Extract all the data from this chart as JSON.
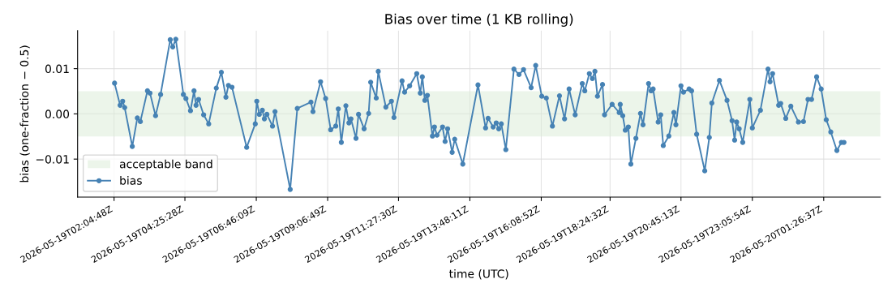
{
  "chart_data": {
    "type": "line",
    "title": "Bias over time (1 KB rolling)",
    "xlabel": "time (UTC)",
    "ylabel": "bias (one-fraction − 0.5)",
    "xlim": [
      "2026-05-19T00:53",
      "2026-05-20T03:19"
    ],
    "ylim": [
      -0.0184,
      0.0184
    ],
    "xticks": [
      {
        "value": "2026-05-19T02:05",
        "label": "2026-05-19T02:04:48Z"
      },
      {
        "value": "2026-05-19T04:25",
        "label": "2026-05-19T04:25:28Z"
      },
      {
        "value": "2026-05-19T06:46",
        "label": "2026-05-19T06:46:09Z"
      },
      {
        "value": "2026-05-19T09:07",
        "label": "2026-05-19T09:06:49Z"
      },
      {
        "value": "2026-05-19T11:27",
        "label": "2026-05-19T11:27:30Z"
      },
      {
        "value": "2026-05-19T13:48",
        "label": "2026-05-19T13:48:11Z"
      },
      {
        "value": "2026-05-19T16:09",
        "label": "2026-05-19T16:08:52Z"
      },
      {
        "value": "2026-05-19T18:25",
        "label": "2026-05-19T18:24:32Z"
      },
      {
        "value": "2026-05-19T20:45",
        "label": "2026-05-19T20:45:13Z"
      },
      {
        "value": "2026-05-19T23:06",
        "label": "2026-05-19T23:05:54Z"
      },
      {
        "value": "2026-05-20T01:27",
        "label": "2026-05-20T01:26:37Z"
      }
    ],
    "yticks": [
      {
        "value": -0.01,
        "label": "−0.01"
      },
      {
        "value": 0,
        "label": "0.00"
      },
      {
        "value": 0.01,
        "label": "0.01"
      }
    ],
    "grid": true,
    "legend": "bottom left",
    "marker": "circle",
    "line_style": "solid",
    "bands": [
      {
        "axis": "y",
        "from": -0.005,
        "to": 0.005,
        "label": "acceptable band",
        "color": "#d9ebd6"
      }
    ],
    "series": [
      {
        "name": "bias",
        "color": "#4682b4",
        "x": [
          "2026-05-19T02:06",
          "2026-05-19T02:17",
          "2026-05-19T02:22",
          "2026-05-19T02:26",
          "2026-05-19T02:41",
          "2026-05-19T02:51",
          "2026-05-19T02:57",
          "2026-05-19T03:11",
          "2026-05-19T03:16",
          "2026-05-19T03:27",
          "2026-05-19T03:37",
          "2026-05-19T03:56",
          "2026-05-19T04:01",
          "2026-05-19T04:07",
          "2026-05-19T04:22",
          "2026-05-19T04:27",
          "2026-05-19T04:36",
          "2026-05-19T04:43",
          "2026-05-19T04:47",
          "2026-05-19T04:52",
          "2026-05-19T05:02",
          "2026-05-19T05:12",
          "2026-05-19T05:27",
          "2026-05-19T05:37",
          "2026-05-19T05:46",
          "2026-05-19T05:51",
          "2026-05-19T05:58",
          "2026-05-19T06:27",
          "2026-05-19T06:44",
          "2026-05-19T06:47",
          "2026-05-19T06:52",
          "2026-05-19T06:58",
          "2026-05-19T07:02",
          "2026-05-19T07:07",
          "2026-05-19T07:18",
          "2026-05-19T07:23",
          "2026-05-19T07:53",
          "2026-05-19T08:07",
          "2026-05-19T08:34",
          "2026-05-19T08:38",
          "2026-05-19T08:53",
          "2026-05-19T09:03",
          "2026-05-19T09:13",
          "2026-05-19T09:23",
          "2026-05-19T09:28",
          "2026-05-19T09:34",
          "2026-05-19T09:43",
          "2026-05-19T09:49",
          "2026-05-19T09:53",
          "2026-05-19T10:03",
          "2026-05-19T10:08",
          "2026-05-19T10:19",
          "2026-05-19T10:28",
          "2026-05-19T10:32",
          "2026-05-19T10:43",
          "2026-05-19T10:47",
          "2026-05-19T11:02",
          "2026-05-19T11:13",
          "2026-05-19T11:18",
          "2026-05-19T11:34",
          "2026-05-19T11:39",
          "2026-05-19T11:49",
          "2026-05-19T12:03",
          "2026-05-19T12:10",
          "2026-05-19T12:14",
          "2026-05-19T12:19",
          "2026-05-19T12:24",
          "2026-05-19T12:34",
          "2026-05-19T12:38",
          "2026-05-19T12:43",
          "2026-05-19T12:54",
          "2026-05-19T12:59",
          "2026-05-19T13:04",
          "2026-05-19T13:13",
          "2026-05-19T13:18",
          "2026-05-19T13:34",
          "2026-05-19T14:04",
          "2026-05-19T14:19",
          "2026-05-19T14:24",
          "2026-05-19T14:34",
          "2026-05-19T14:40",
          "2026-05-19T14:45",
          "2026-05-19T14:50",
          "2026-05-19T14:59",
          "2026-05-19T15:15",
          "2026-05-19T15:25",
          "2026-05-19T15:34",
          "2026-05-19T15:49",
          "2026-05-19T15:58",
          "2026-05-19T16:10",
          "2026-05-19T16:19",
          "2026-05-19T16:31",
          "2026-05-19T16:45",
          "2026-05-19T16:55",
          "2026-05-19T17:04",
          "2026-05-19T17:16",
          "2026-05-19T17:30",
          "2026-05-19T17:35",
          "2026-05-19T17:44",
          "2026-05-19T17:50",
          "2026-05-19T17:55",
          "2026-05-19T18:00",
          "2026-05-19T18:10",
          "2026-05-19T18:14",
          "2026-05-19T18:29",
          "2026-05-19T18:43",
          "2026-05-19T18:45",
          "2026-05-19T18:50",
          "2026-05-19T18:55",
          "2026-05-19T19:01",
          "2026-05-19T19:06",
          "2026-05-19T19:16",
          "2026-05-19T19:25",
          "2026-05-19T19:30",
          "2026-05-19T19:41",
          "2026-05-19T19:46",
          "2026-05-19T19:50",
          "2026-05-19T20:00",
          "2026-05-19T20:05",
          "2026-05-19T20:10",
          "2026-05-19T20:21",
          "2026-05-19T20:31",
          "2026-05-19T20:35",
          "2026-05-19T20:45",
          "2026-05-19T20:50",
          "2026-05-19T21:01",
          "2026-05-19T21:06",
          "2026-05-19T21:16",
          "2026-05-19T21:32",
          "2026-05-19T21:41",
          "2026-05-19T21:46",
          "2026-05-19T22:01",
          "2026-05-19T22:16",
          "2026-05-19T22:26",
          "2026-05-19T22:31",
          "2026-05-19T22:35",
          "2026-05-19T22:40",
          "2026-05-19T22:47",
          "2026-05-19T23:01",
          "2026-05-19T23:06",
          "2026-05-19T23:22",
          "2026-05-19T23:37",
          "2026-05-19T23:41",
          "2026-05-19T23:46",
          "2026-05-19T23:58",
          "2026-05-20T00:02",
          "2026-05-20T00:12",
          "2026-05-20T00:22",
          "2026-05-20T00:37",
          "2026-05-20T00:47",
          "2026-05-20T00:56",
          "2026-05-20T01:03",
          "2026-05-20T01:13",
          "2026-05-20T01:22",
          "2026-05-20T01:32",
          "2026-05-20T01:41",
          "2026-05-20T01:53",
          "2026-05-20T02:02",
          "2026-05-20T02:07"
        ],
        "values": [
          0.0068,
          0.0019,
          0.0028,
          0.0014,
          -0.0072,
          -0.0009,
          -0.0017,
          0.0051,
          0.0046,
          -0.0004,
          0.0043,
          0.0164,
          0.0148,
          0.0165,
          0.0043,
          0.0034,
          0.0007,
          0.0051,
          0.0019,
          0.0032,
          -0.0002,
          -0.0022,
          0.0057,
          0.0092,
          0.0037,
          0.0063,
          0.0059,
          -0.0074,
          -0.0022,
          0.0028,
          -0.0001,
          0.0008,
          -0.0011,
          -0.0001,
          -0.0027,
          0.0005,
          -0.0167,
          0.0012,
          0.0026,
          0.0005,
          0.0071,
          0.0034,
          -0.0035,
          -0.0027,
          0.0011,
          -0.0063,
          0.0018,
          -0.002,
          -0.0011,
          -0.0054,
          -0.0001,
          -0.0033,
          0.0001,
          0.007,
          0.0035,
          0.0094,
          0.0015,
          0.0028,
          -0.0008,
          0.0073,
          0.0048,
          0.0062,
          0.0089,
          0.0046,
          0.0082,
          0.003,
          0.0041,
          -0.0049,
          -0.0029,
          -0.0047,
          -0.0029,
          -0.0061,
          -0.0033,
          -0.0085,
          -0.0056,
          -0.0111,
          0.0064,
          -0.0031,
          -0.001,
          -0.0029,
          -0.002,
          -0.0033,
          -0.0022,
          -0.0079,
          0.0099,
          0.0087,
          0.0098,
          0.0058,
          0.0107,
          0.0039,
          0.0035,
          -0.0027,
          0.004,
          -0.0011,
          0.0055,
          -0.0002,
          0.0067,
          0.0051,
          0.0089,
          0.0078,
          0.0094,
          0.0039,
          0.0065,
          -0.0002,
          0.0021,
          0.0003,
          0.0021,
          -0.0004,
          -0.0036,
          -0.0029,
          -0.0111,
          -0.0054,
          0.0001,
          -0.0024,
          0.0067,
          0.0051,
          0.0055,
          -0.0018,
          -0.0002,
          -0.007,
          -0.0049,
          0.0003,
          -0.0024,
          0.0062,
          0.0048,
          0.0055,
          0.0051,
          -0.0045,
          -0.0126,
          -0.0052,
          0.0024,
          0.0074,
          0.003,
          -0.0015,
          -0.0058,
          -0.0018,
          -0.0033,
          -0.0063,
          0.0032,
          -0.0031,
          0.0008,
          0.0099,
          0.0071,
          0.0089,
          0.0019,
          0.0023,
          -0.001,
          0.0017,
          -0.0018,
          -0.0017,
          0.0032,
          0.0032,
          0.0082,
          0.0055,
          -0.0013,
          -0.004,
          -0.0081,
          -0.0063,
          -0.0063
        ]
      }
    ]
  }
}
